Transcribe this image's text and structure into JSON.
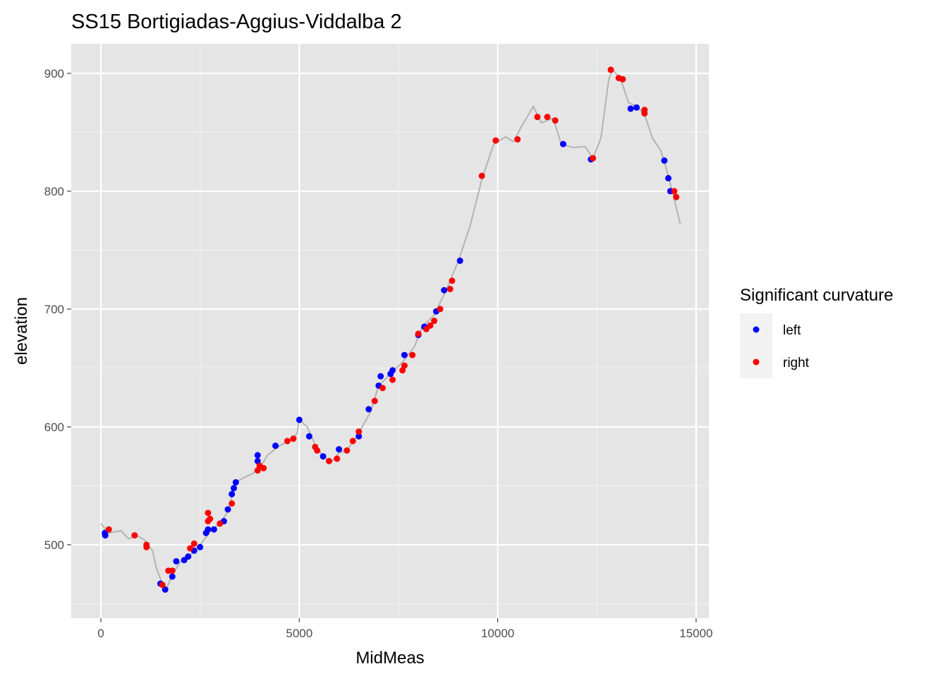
{
  "chart_data": {
    "type": "scatter",
    "title": "SS15 Bortigiadas-Aggius-Viddalba 2",
    "x_label": "MidMeas",
    "y_label": "elevation",
    "legend_title": "Significant curvature",
    "legend_position": "right",
    "grid": true,
    "xlim": [
      -747,
      15322
    ],
    "ylim": [
      437.7,
      925.1
    ],
    "xticks": [
      0,
      5000,
      10000,
      15000
    ],
    "yticks": [
      500,
      600,
      700,
      800,
      900
    ],
    "x_minor_ticks": [
      2500,
      7500,
      12500
    ],
    "y_minor_ticks": [
      450,
      550,
      650,
      750,
      850
    ],
    "profile": {
      "color": "#b3b3b3",
      "x": [
        0,
        200,
        500,
        700,
        900,
        1100,
        1300,
        1400,
        1550,
        1650,
        1800,
        2000,
        2300,
        2500,
        2800,
        3000,
        3200,
        3400,
        3600,
        3800,
        4000,
        4200,
        4500,
        4800,
        4950,
        5000,
        5200,
        5400,
        5600,
        5800,
        6000,
        6200,
        6500,
        6800,
        7000,
        7300,
        7600,
        7900,
        8100,
        8400,
        8700,
        9000,
        9300,
        9600,
        9900,
        10200,
        10400,
        10600,
        10900,
        11100,
        11400,
        11600,
        11900,
        12200,
        12400,
        12600,
        12800,
        12900,
        13100,
        13300,
        13500,
        13700,
        13900,
        14100,
        14200,
        14400,
        14600
      ],
      "y": [
        518,
        510,
        512,
        505,
        508,
        504,
        495,
        480,
        467,
        462,
        475,
        485,
        493,
        500,
        513,
        518,
        528,
        553,
        557,
        560,
        565,
        576,
        584,
        589,
        595,
        606,
        600,
        585,
        575,
        570,
        578,
        580,
        595,
        613,
        635,
        645,
        655,
        668,
        685,
        695,
        716,
        740,
        770,
        810,
        840,
        846,
        842,
        855,
        872,
        858,
        862,
        840,
        837,
        838,
        828,
        845,
        895,
        903,
        895,
        875,
        872,
        865,
        845,
        835,
        825,
        800,
        772
      ]
    },
    "series": [
      {
        "name": "left",
        "color": "#0000ff",
        "x": [
          100,
          110,
          1500,
          1620,
          1800,
          1900,
          2100,
          2200,
          2350,
          2500,
          2650,
          2700,
          2850,
          3100,
          3200,
          3300,
          3400,
          3350,
          3950,
          3950,
          4400,
          5000,
          5250,
          5600,
          6000,
          6500,
          6750,
          7000,
          7050,
          7300,
          7350,
          7650,
          8000,
          8150,
          8450,
          8650,
          9050,
          11650,
          12350,
          13350,
          13500,
          14200,
          14300,
          14350
        ],
        "values": [
          510,
          508,
          467,
          462,
          473,
          486,
          487,
          490,
          495,
          498,
          510,
          513,
          513,
          520,
          530,
          543,
          553,
          548,
          571,
          576,
          584,
          606,
          592,
          575,
          581,
          592,
          615,
          635,
          643,
          645,
          648,
          661,
          678,
          685,
          698,
          716,
          741,
          840,
          827,
          870,
          871,
          826,
          811,
          800
        ]
      },
      {
        "name": "right",
        "color": "#ff0000",
        "x": [
          200,
          850,
          1150,
          1150,
          1550,
          1700,
          1800,
          2250,
          2350,
          2700,
          2700,
          2750,
          3000,
          3300,
          3950,
          4000,
          4100,
          4700,
          4850,
          5400,
          5450,
          5750,
          5950,
          6200,
          6350,
          6500,
          6900,
          7100,
          7350,
          7600,
          7650,
          7850,
          8000,
          8200,
          8300,
          8400,
          8550,
          8800,
          8850,
          9600,
          9950,
          10500,
          11000,
          11250,
          11450,
          12400,
          12850,
          13050,
          13150,
          13700,
          13700,
          14450,
          14500
        ],
        "values": [
          513,
          508,
          500,
          498,
          466,
          478,
          478,
          497,
          501,
          527,
          520,
          522,
          518,
          535,
          563,
          567,
          565,
          588,
          590,
          583,
          580,
          571,
          573,
          580,
          588,
          596,
          622,
          633,
          640,
          648,
          652,
          661,
          679,
          683,
          686,
          690,
          700,
          717,
          724,
          813,
          843,
          844,
          863,
          863,
          860,
          828,
          903,
          896,
          895,
          869,
          866,
          800,
          795
        ]
      }
    ]
  }
}
